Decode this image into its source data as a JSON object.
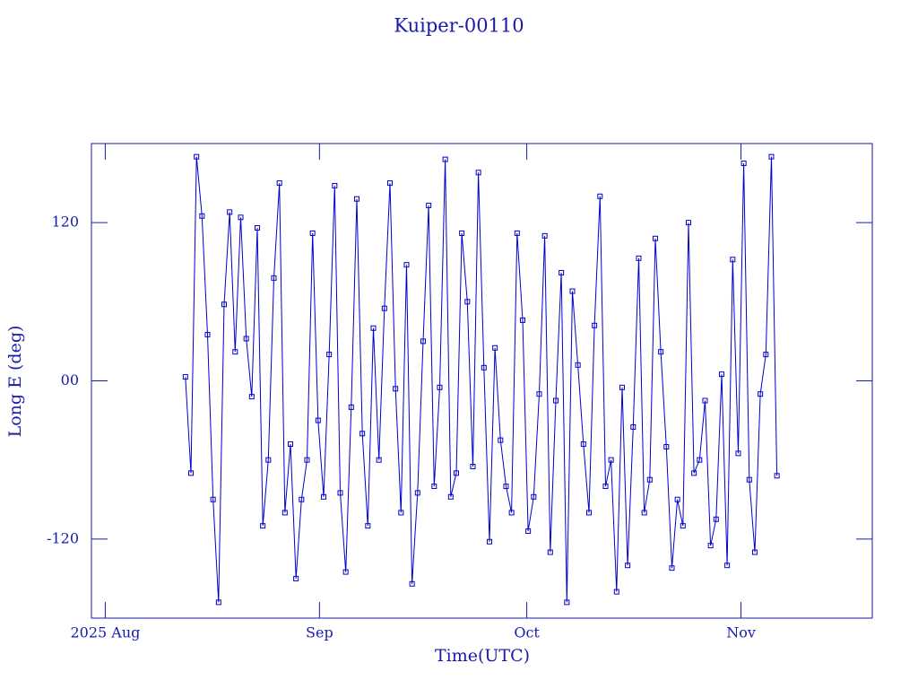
{
  "chart_data": {
    "type": "line",
    "title": "Kuiper-00110",
    "x_label": "Time(UTC)",
    "y_label": "Long E (deg)",
    "xlim": [
      -2,
      111
    ],
    "xticks": [
      {
        "value": 0,
        "label": "2025 Aug"
      },
      {
        "value": 31,
        "label": "Sep"
      },
      {
        "value": 61,
        "label": "Oct"
      },
      {
        "value": 92,
        "label": "Nov"
      }
    ],
    "ylim": [
      -180,
      180
    ],
    "yticks": [
      -120,
      {
        "value": 0,
        "label": "00"
      },
      120
    ],
    "color": "#0000cc",
    "markers": true,
    "x": [
      11.6,
      12.4,
      13.2,
      14.0,
      14.8,
      15.6,
      16.4,
      17.2,
      18.0,
      18.8,
      19.6,
      20.4,
      21.2,
      22.0,
      22.8,
      23.6,
      24.4,
      25.2,
      26.0,
      26.8,
      27.6,
      28.4,
      29.2,
      30.0,
      30.8,
      31.6,
      32.4,
      33.2,
      34.0,
      34.8,
      35.6,
      36.4,
      37.2,
      38.0,
      38.8,
      39.6,
      40.4,
      41.2,
      42.0,
      42.8,
      43.6,
      44.4,
      45.2,
      46.0,
      46.8,
      47.6,
      48.4,
      49.2,
      50.0,
      50.8,
      51.6,
      52.4,
      53.2,
      54.0,
      54.8,
      55.6,
      56.4,
      57.2,
      58.0,
      58.8,
      59.6,
      60.4,
      61.2,
      62.0,
      62.8,
      63.6,
      64.4,
      65.2,
      66.0,
      66.8,
      67.6,
      68.4,
      69.2,
      70.0,
      70.8,
      71.6,
      72.4,
      73.2,
      74.0,
      74.8,
      75.6,
      76.4,
      77.2,
      78.0,
      78.8,
      79.6,
      80.4,
      81.2,
      82.0,
      82.8,
      83.6,
      84.4,
      85.2,
      86.0,
      86.8,
      87.6,
      88.4,
      89.2,
      90.0,
      90.8,
      91.6,
      92.4,
      93.2,
      94.0,
      94.8,
      95.6,
      96.4,
      97.2
    ],
    "values": [
      3,
      -70,
      170,
      125,
      35,
      -90,
      -168,
      58,
      128,
      22,
      124,
      32,
      -12,
      116,
      -110,
      -60,
      78,
      150,
      -100,
      -48,
      -150,
      -90,
      -60,
      112,
      -30,
      -88,
      20,
      148,
      -85,
      -145,
      -20,
      138,
      -40,
      -110,
      40,
      -60,
      55,
      150,
      -6,
      -100,
      88,
      -154,
      -85,
      30,
      133,
      -80,
      -5,
      168,
      -88,
      -70,
      112,
      60,
      -65,
      158,
      10,
      -122,
      25,
      -45,
      -80,
      -100,
      112,
      46,
      -114,
      -88,
      -10,
      110,
      -130,
      -15,
      82,
      -168,
      68,
      12,
      -48,
      -100,
      42,
      140,
      -80,
      -60,
      -160,
      -5,
      -140,
      -35,
      93,
      -100,
      -75,
      108,
      22,
      -50,
      -142,
      -90,
      -110,
      120,
      -70,
      -60,
      -15,
      -125,
      -105,
      5,
      -140,
      92,
      -55,
      165,
      -75,
      -130,
      -10,
      20,
      170,
      -72
    ]
  }
}
